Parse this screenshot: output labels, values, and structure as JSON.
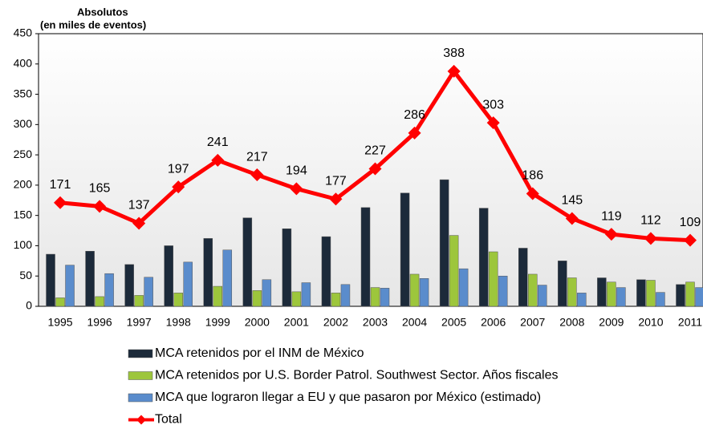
{
  "chart_data": {
    "type": "bar",
    "title": "Absolutos",
    "subtitle": "(en miles de eventos)",
    "categories": [
      "1995",
      "1996",
      "1997",
      "1998",
      "1999",
      "2000",
      "2001",
      "2002",
      "2003",
      "2004",
      "2005",
      "2006",
      "2007",
      "2008",
      "2009",
      "2010",
      "2011"
    ],
    "series": [
      {
        "name": "MCA retenidos por el INM de México",
        "color": "#1c2a3a",
        "type": "bar",
        "values": [
          86,
          91,
          69,
          100,
          112,
          146,
          128,
          115,
          163,
          187,
          209,
          162,
          96,
          75,
          47,
          44,
          36
        ]
      },
      {
        "name": "MCA retenidos por U.S. Border Patrol. Southwest Sector. Años fiscales",
        "color": "#9dc63c",
        "type": "bar",
        "values": [
          14,
          16,
          18,
          22,
          33,
          26,
          24,
          22,
          31,
          53,
          117,
          90,
          53,
          47,
          40,
          43,
          40
        ]
      },
      {
        "name": "MCA que lograron llegar a EU y que pasaron por México (estimado)",
        "color": "#5a8ccc",
        "type": "bar",
        "values": [
          68,
          54,
          48,
          73,
          93,
          44,
          39,
          36,
          30,
          46,
          62,
          50,
          35,
          22,
          31,
          23,
          31
        ]
      },
      {
        "name": "Total",
        "color": "#ff0000",
        "type": "line",
        "values": [
          171,
          165,
          137,
          197,
          241,
          217,
          194,
          177,
          227,
          286,
          388,
          303,
          186,
          145,
          119,
          112,
          109
        ]
      }
    ],
    "ylim": [
      0,
      450
    ],
    "yticks": [
      0,
      50,
      100,
      150,
      200,
      250,
      300,
      350,
      400,
      450
    ],
    "grid": false
  }
}
